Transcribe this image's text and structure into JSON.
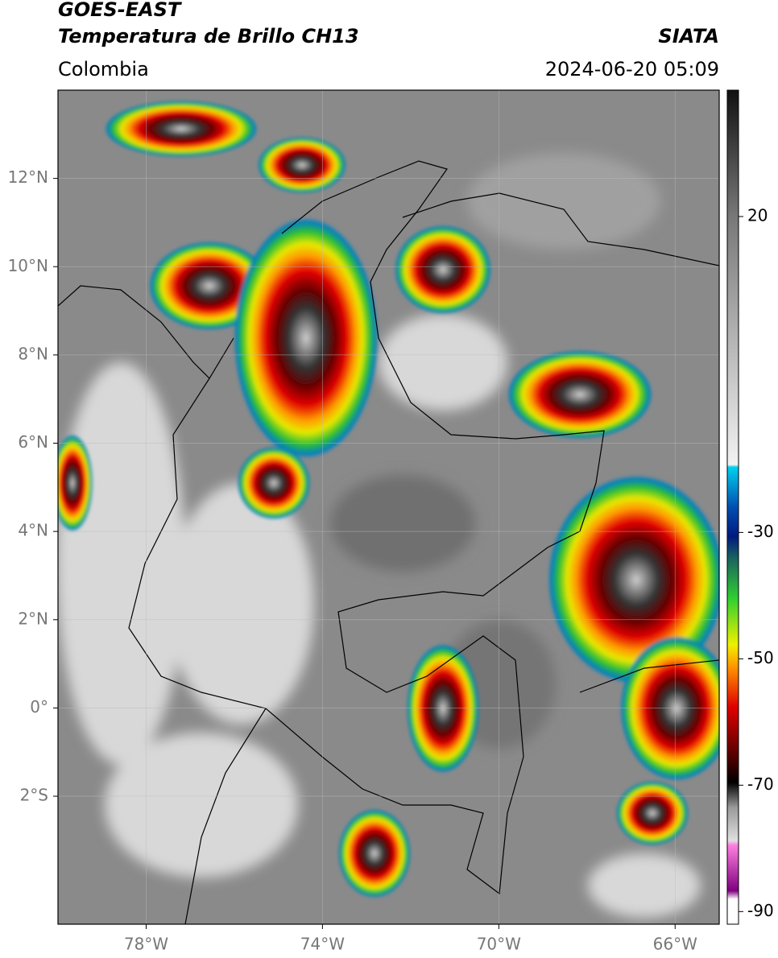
{
  "header": {
    "title": "GOES-EAST",
    "subtitle": "Temperatura de Brillo CH13",
    "source": "SIATA",
    "region": "Colombia",
    "datetime": "2024-06-20 05:09"
  },
  "map": {
    "xlim": [
      -80,
      -65
    ],
    "ylim": [
      -4.9,
      14
    ],
    "xticks": [
      {
        "value": -78,
        "label": "78°W"
      },
      {
        "value": -74,
        "label": "74°W"
      },
      {
        "value": -70,
        "label": "70°W"
      },
      {
        "value": -66,
        "label": "66°W"
      }
    ],
    "yticks": [
      {
        "value": 12,
        "label": "12°N"
      },
      {
        "value": 10,
        "label": "10°N"
      },
      {
        "value": 8,
        "label": "8°N"
      },
      {
        "value": 6,
        "label": "6°N"
      },
      {
        "value": 4,
        "label": "4°N"
      },
      {
        "value": 2,
        "label": "2°N"
      },
      {
        "value": 0,
        "label": "0°"
      },
      {
        "value": -2,
        "label": "2°S"
      }
    ],
    "grid": true
  },
  "colorbar": {
    "lim": [
      -92,
      40
    ],
    "ticks": [
      20,
      -30,
      -50,
      -70,
      -90
    ]
  }
}
